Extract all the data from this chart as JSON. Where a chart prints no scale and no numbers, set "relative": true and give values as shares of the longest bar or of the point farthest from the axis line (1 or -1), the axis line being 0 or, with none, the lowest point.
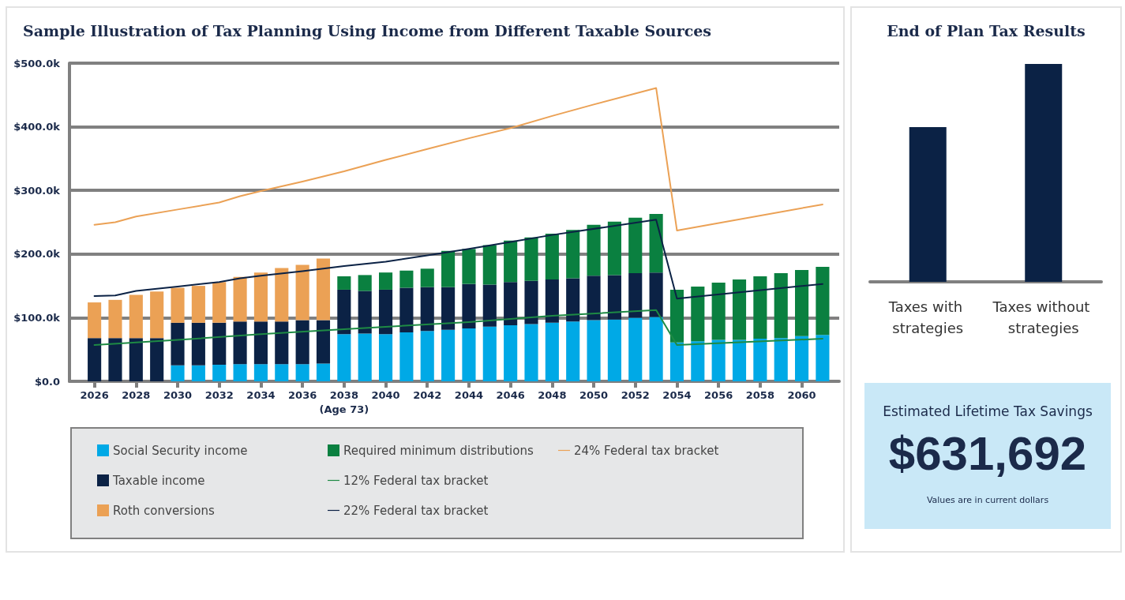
{
  "chart_data": [
    {
      "type": "bar",
      "title": "Sample Illustration of Tax Planning Using Income from Different Taxable Sources",
      "stacked": true,
      "x": [
        2026,
        2027,
        2028,
        2029,
        2030,
        2031,
        2032,
        2033,
        2034,
        2035,
        2036,
        2037,
        2038,
        2039,
        2040,
        2041,
        2042,
        2043,
        2044,
        2045,
        2046,
        2047,
        2048,
        2049,
        2050,
        2051,
        2052,
        2053,
        2054,
        2055,
        2056,
        2057,
        2058,
        2059,
        2060,
        2061
      ],
      "xlim": [
        2024.8,
        2061.8
      ],
      "xticks": [
        2026,
        2028,
        2030,
        2032,
        2034,
        2036,
        {
          "value": 2038,
          "label": "2038\n(Age 73)"
        },
        2040,
        2042,
        2044,
        2046,
        2048,
        2050,
        2052,
        2054,
        2056,
        2058,
        2060
      ],
      "ylim": [
        0,
        500
      ],
      "yticks": [
        {
          "value": 0,
          "label": "$0.0"
        },
        {
          "value": 100,
          "label": "$100.0k"
        },
        {
          "value": 200,
          "label": "$200.0k"
        },
        {
          "value": 300,
          "label": "$300.0k"
        },
        {
          "value": 400,
          "label": "$400.0k"
        },
        {
          "value": 500,
          "label": "$500.0k"
        }
      ],
      "grid": "y",
      "legend": "bottom",
      "marker": "none",
      "line_style": "solid",
      "series": [
        {
          "name": "Social Security income",
          "color": "#00a9e6",
          "values": [
            null,
            null,
            null,
            null,
            25,
            25,
            26,
            27,
            27,
            27,
            27,
            28,
            74,
            75,
            74,
            77,
            79,
            81,
            83,
            86,
            88,
            90,
            92,
            94,
            96,
            97,
            100,
            101,
            61,
            63,
            65,
            65,
            67,
            68,
            71,
            73
          ]
        },
        {
          "name": "Taxable income",
          "color": "#0b2245",
          "values": [
            68,
            68,
            68,
            68,
            67,
            67,
            66,
            67,
            67,
            67,
            69,
            68,
            70,
            67,
            70,
            70,
            69,
            67,
            70,
            66,
            68,
            68,
            68,
            68,
            70,
            70,
            70,
            70,
            null,
            null,
            null,
            null,
            null,
            null,
            null,
            null
          ]
        },
        {
          "name": "Roth conversions",
          "color": "#eba155",
          "values": [
            56,
            60,
            68,
            73,
            55,
            58,
            64,
            70,
            77,
            84,
            87,
            97,
            null,
            null,
            null,
            null,
            null,
            null,
            null,
            null,
            null,
            null,
            null,
            null,
            null,
            null,
            null,
            null,
            null,
            null,
            null,
            null,
            null,
            null,
            null,
            null
          ]
        },
        {
          "name": "Required minimum distributions",
          "color": "#0a8040",
          "values": [
            null,
            null,
            null,
            null,
            null,
            null,
            null,
            null,
            null,
            null,
            null,
            null,
            21,
            25,
            27,
            27,
            29,
            57,
            55,
            62,
            65,
            68,
            72,
            76,
            80,
            84,
            87,
            92,
            83,
            86,
            90,
            95,
            98,
            102,
            104,
            107
          ]
        },
        {
          "name": "12% Federal tax bracket",
          "type": "line",
          "color": "#1e8a44",
          "x": [
            2026,
            2030,
            2034,
            2038,
            2044,
            2048,
            2053,
            2054,
            2061
          ],
          "values": [
            57,
            65,
            74,
            82,
            93,
            103,
            112,
            57,
            67
          ]
        },
        {
          "name": "22% Federal tax bracket",
          "type": "line",
          "color": "#0b2245",
          "x": [
            2026,
            2027,
            2028,
            2030,
            2032,
            2033,
            2034,
            2036,
            2038,
            2040,
            2042,
            2044,
            2046,
            2048,
            2053,
            2054,
            2061
          ],
          "values": [
            134,
            135,
            142,
            149,
            156,
            162,
            166,
            173,
            181,
            188,
            198,
            208,
            219,
            230,
            254,
            130,
            153
          ]
        },
        {
          "name": "24% Federal tax bracket",
          "type": "line",
          "color": "#eba155",
          "x": [
            2026,
            2027,
            2028,
            2030,
            2032,
            2033,
            2034,
            2036,
            2038,
            2040,
            2042,
            2044,
            2046,
            2048,
            2050,
            2053,
            2054,
            2061
          ],
          "values": [
            246,
            250,
            259,
            270,
            281,
            291,
            299,
            314,
            330,
            348,
            365,
            382,
            398,
            417,
            435,
            461,
            237,
            278
          ]
        }
      ]
    },
    {
      "type": "bar",
      "title": "End of Plan Tax Results",
      "relative": true,
      "categories": [
        "Taxes with strategies",
        "Taxes without strategies"
      ],
      "values": [
        0.71,
        1
      ],
      "color": "#0b2245"
    },
    {
      "type": "other",
      "title": "Estimated Lifetime Tax Savings",
      "subtitle": "$631,692",
      "annotations": [
        "Values are in current dollars"
      ]
    }
  ]
}
